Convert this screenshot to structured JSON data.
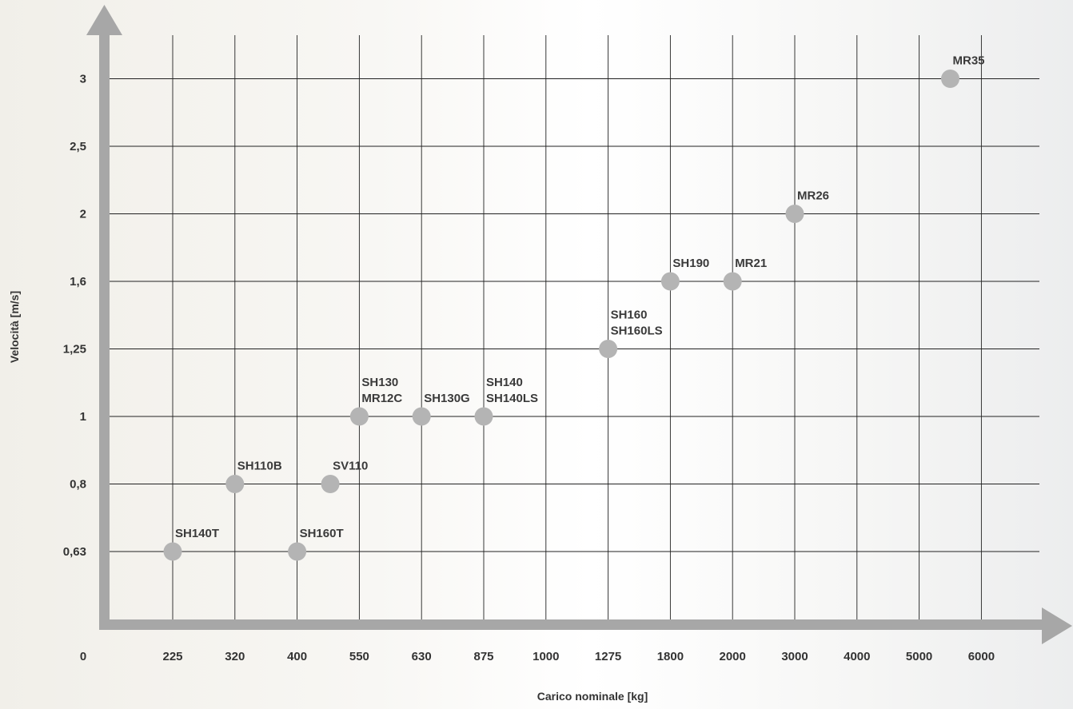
{
  "colors": {
    "axis": "#a7a7a7",
    "grid": "#222222",
    "marker": "#b4b4b4",
    "text": "#333333"
  },
  "chart_data": {
    "type": "scatter",
    "xlabel": "Carico nominale [kg]",
    "ylabel": "Velocità [m/s]",
    "x_origin_label": "0",
    "x_categories": [
      "225",
      "320",
      "400",
      "550",
      "630",
      "875",
      "1000",
      "1275",
      "1800",
      "2000",
      "3000",
      "4000",
      "5000",
      "6000"
    ],
    "y_categories": [
      "0,63",
      "0,8",
      "1",
      "1,25",
      "1,6",
      "2",
      "2,5",
      "3"
    ],
    "grid": true,
    "points": [
      {
        "label": [
          "SH140T"
        ],
        "x": 225,
        "y": 0.63
      },
      {
        "label": [
          "SH160T"
        ],
        "x": 400,
        "y": 0.63
      },
      {
        "label": [
          "SH110B"
        ],
        "x": 320,
        "y": 0.8
      },
      {
        "label": [
          "SV110"
        ],
        "x": 480,
        "y": 0.8
      },
      {
        "label": [
          "SH130",
          "MR12C"
        ],
        "x": 550,
        "y": 1
      },
      {
        "label": [
          "SH130G"
        ],
        "x": 630,
        "y": 1
      },
      {
        "label": [
          "SH140",
          "SH140LS"
        ],
        "x": 875,
        "y": 1
      },
      {
        "label": [
          "SH160",
          "SH160LS"
        ],
        "x": 1275,
        "y": 1.25
      },
      {
        "label": [
          "SH190"
        ],
        "x": 1800,
        "y": 1.6
      },
      {
        "label": [
          "MR21"
        ],
        "x": 2000,
        "y": 1.6
      },
      {
        "label": [
          "MR26"
        ],
        "x": 3000,
        "y": 2
      },
      {
        "label": [
          "MR35"
        ],
        "x": 5500,
        "y": 3
      }
    ]
  }
}
